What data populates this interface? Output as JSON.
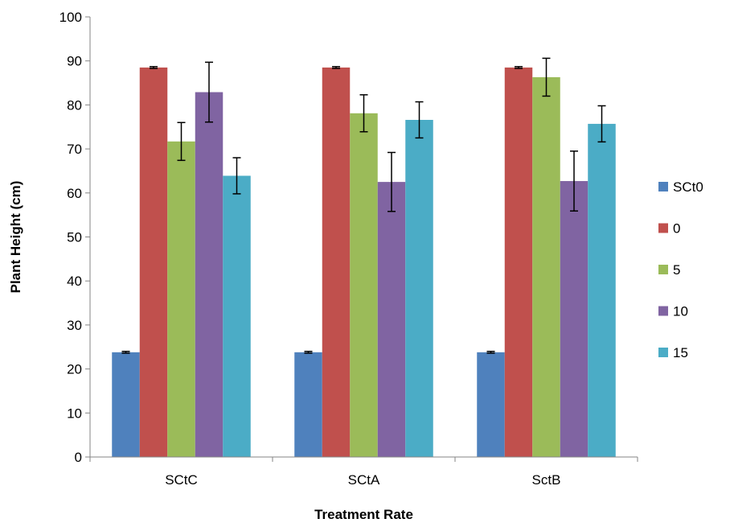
{
  "chart_data": {
    "type": "bar",
    "xlabel": "Treatment Rate",
    "ylabel": "Plant Height (cm)",
    "categories": [
      "SCtC",
      "SCtA",
      "SctB"
    ],
    "ylim": [
      0,
      100
    ],
    "yticks": [
      0,
      10,
      20,
      30,
      40,
      50,
      60,
      70,
      80,
      90,
      100
    ],
    "grid": false,
    "legend_position": "right",
    "series": [
      {
        "name": "SCt0",
        "color": "#4F81BD",
        "values": [
          23.8,
          23.8,
          23.8
        ],
        "errors": [
          0.2,
          0.2,
          0.2
        ]
      },
      {
        "name": "0",
        "color": "#C0504D",
        "values": [
          88.5,
          88.5,
          88.5
        ],
        "errors": [
          0.2,
          0.2,
          0.2
        ]
      },
      {
        "name": "5",
        "color": "#9BBB59",
        "values": [
          71.7,
          78.1,
          86.3
        ],
        "errors": [
          4.3,
          4.2,
          4.3
        ]
      },
      {
        "name": "10",
        "color": "#8064A2",
        "values": [
          82.9,
          62.5,
          62.7
        ],
        "errors": [
          6.8,
          6.7,
          6.8
        ]
      },
      {
        "name": "15",
        "color": "#4BACC6",
        "values": [
          63.9,
          76.6,
          75.7
        ],
        "errors": [
          4.1,
          4.1,
          4.1
        ]
      }
    ]
  }
}
